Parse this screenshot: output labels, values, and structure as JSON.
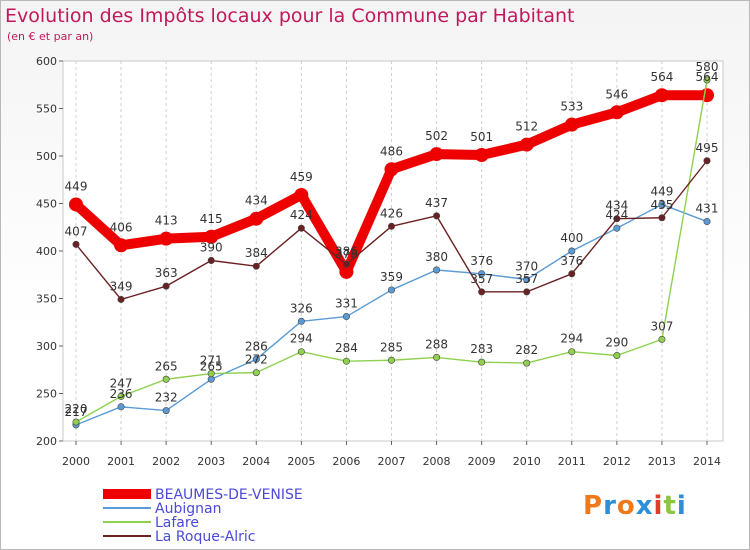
{
  "chart_data": {
    "type": "line",
    "title": "Evolution des Impôts locaux pour la Commune par Habitant",
    "subtitle": "(en € et par an)",
    "x": [
      2000,
      2001,
      2002,
      2003,
      2004,
      2005,
      2006,
      2007,
      2008,
      2009,
      2010,
      2011,
      2012,
      2013,
      2014
    ],
    "xlabels": [
      "2000",
      "2001",
      "2002",
      "2003",
      "2004",
      "2005",
      "2006",
      "2007",
      "2008",
      "2009",
      "2010",
      "2011",
      "2012",
      "2013",
      "2014"
    ],
    "ylim": [
      200,
      600
    ],
    "yticks": [
      200,
      250,
      300,
      350,
      400,
      450,
      500,
      550,
      600
    ],
    "grid": "vertical-dashed",
    "series": [
      {
        "name": "BEAUMES-DE-VENISE",
        "color": "#ee0000",
        "values": [
          449,
          406,
          413,
          415,
          434,
          459,
          378,
          486,
          502,
          501,
          512,
          533,
          546,
          564,
          564
        ]
      },
      {
        "name": "Aubignan",
        "color": "#5b9bd5",
        "values": [
          217,
          236,
          232,
          265,
          286,
          326,
          331,
          359,
          380,
          376,
          370,
          400,
          424,
          449,
          431
        ]
      },
      {
        "name": "Lafare",
        "color": "#8fd14f",
        "values": [
          220,
          247,
          265,
          271,
          272,
          294,
          284,
          285,
          288,
          283,
          282,
          294,
          290,
          307,
          580
        ]
      },
      {
        "name": "La Roque-Alric",
        "color": "#6b2121",
        "values": [
          407,
          349,
          363,
          390,
          384,
          424,
          386,
          426,
          437,
          357,
          357,
          376,
          434,
          435,
          495
        ]
      }
    ]
  },
  "branding": {
    "logo_letters": [
      "P",
      "r",
      "o",
      "x",
      "i",
      "t",
      "i"
    ],
    "logo_colors": [
      "#f07a1a",
      "#2c8fd8",
      "#f07a1a",
      "#2c8fd8",
      "#e23c2c",
      "#8cc63f",
      "#2c8fd8"
    ]
  }
}
